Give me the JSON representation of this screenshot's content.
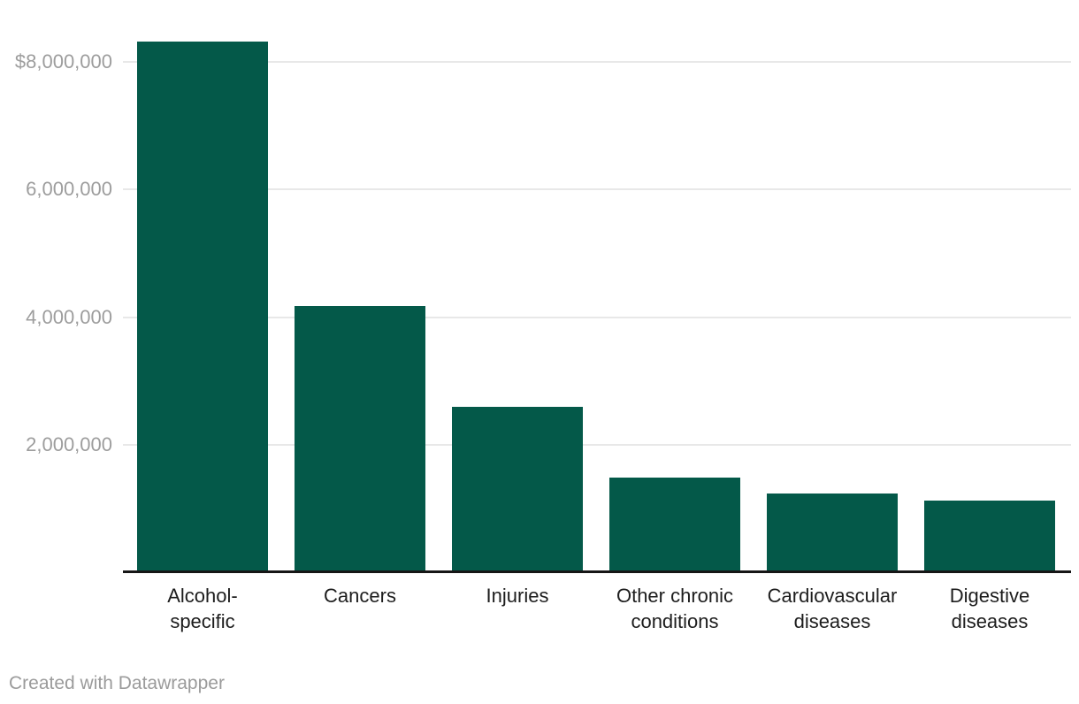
{
  "chart_data": {
    "type": "bar",
    "title": "",
    "xlabel": "",
    "ylabel": "",
    "categories": [
      "Alcohol-specific",
      "Cancers",
      "Injuries",
      "Other chronic conditions",
      "Cardiovascular diseases",
      "Digestive diseases"
    ],
    "categories_display_lines": [
      [
        "Alcohol-",
        "specific"
      ],
      [
        "Cancers"
      ],
      [
        "Injuries"
      ],
      [
        "Other chronic",
        "conditions"
      ],
      [
        "Cardiovascular",
        "diseases"
      ],
      [
        "Digestive",
        "diseases"
      ]
    ],
    "values": [
      8320000,
      4170000,
      2590000,
      1490000,
      1230000,
      1130000
    ],
    "value_prefix": "$",
    "ylim": [
      0,
      8970000
    ],
    "yticks": [
      {
        "value": 2000000,
        "label": "2,000,000"
      },
      {
        "value": 4000000,
        "label": "4,000,000"
      },
      {
        "value": 6000000,
        "label": "6,000,000"
      },
      {
        "value": 8000000,
        "label": "$8,000,000"
      }
    ],
    "grid": true,
    "legend": "none",
    "bar_color": "#045949"
  },
  "footer": {
    "attribution": "Created with Datawrapper"
  },
  "colors": {
    "background": "#ffffff",
    "bar": "#045949",
    "grid": "#e8e8e8",
    "axis": "#161616",
    "tick_label": "#9d9d9d",
    "category_label": "#1d1d1d",
    "footer_text": "#9b9b9b"
  }
}
